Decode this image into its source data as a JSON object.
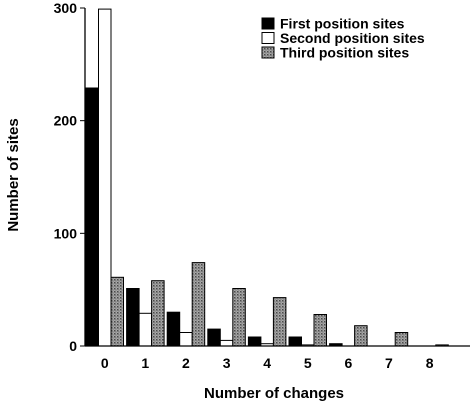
{
  "chart_data": {
    "type": "bar",
    "title": "",
    "xlabel": "Number of changes",
    "ylabel": "Number of sites",
    "categories": [
      "0",
      "1",
      "2",
      "3",
      "4",
      "5",
      "6",
      "7",
      "8"
    ],
    "ylim": [
      0,
      300
    ],
    "yticks": [
      "0",
      "100",
      "200",
      "300"
    ],
    "grid": false,
    "legend_position": "top-right",
    "series": [
      {
        "name": "First position sites",
        "values": [
          229,
          51,
          30,
          15,
          8,
          8,
          2,
          0,
          0
        ],
        "color": "#000000",
        "fill": "solid"
      },
      {
        "name": "Second position sites",
        "values": [
          299,
          29,
          12,
          5,
          2,
          1,
          0,
          0,
          0
        ],
        "color": "#ffffff",
        "fill": "hollow"
      },
      {
        "name": "Third position sites",
        "values": [
          61,
          58,
          74,
          51,
          43,
          28,
          18,
          12,
          1
        ],
        "color": "#8c8c8c",
        "fill": "dotted"
      }
    ]
  }
}
